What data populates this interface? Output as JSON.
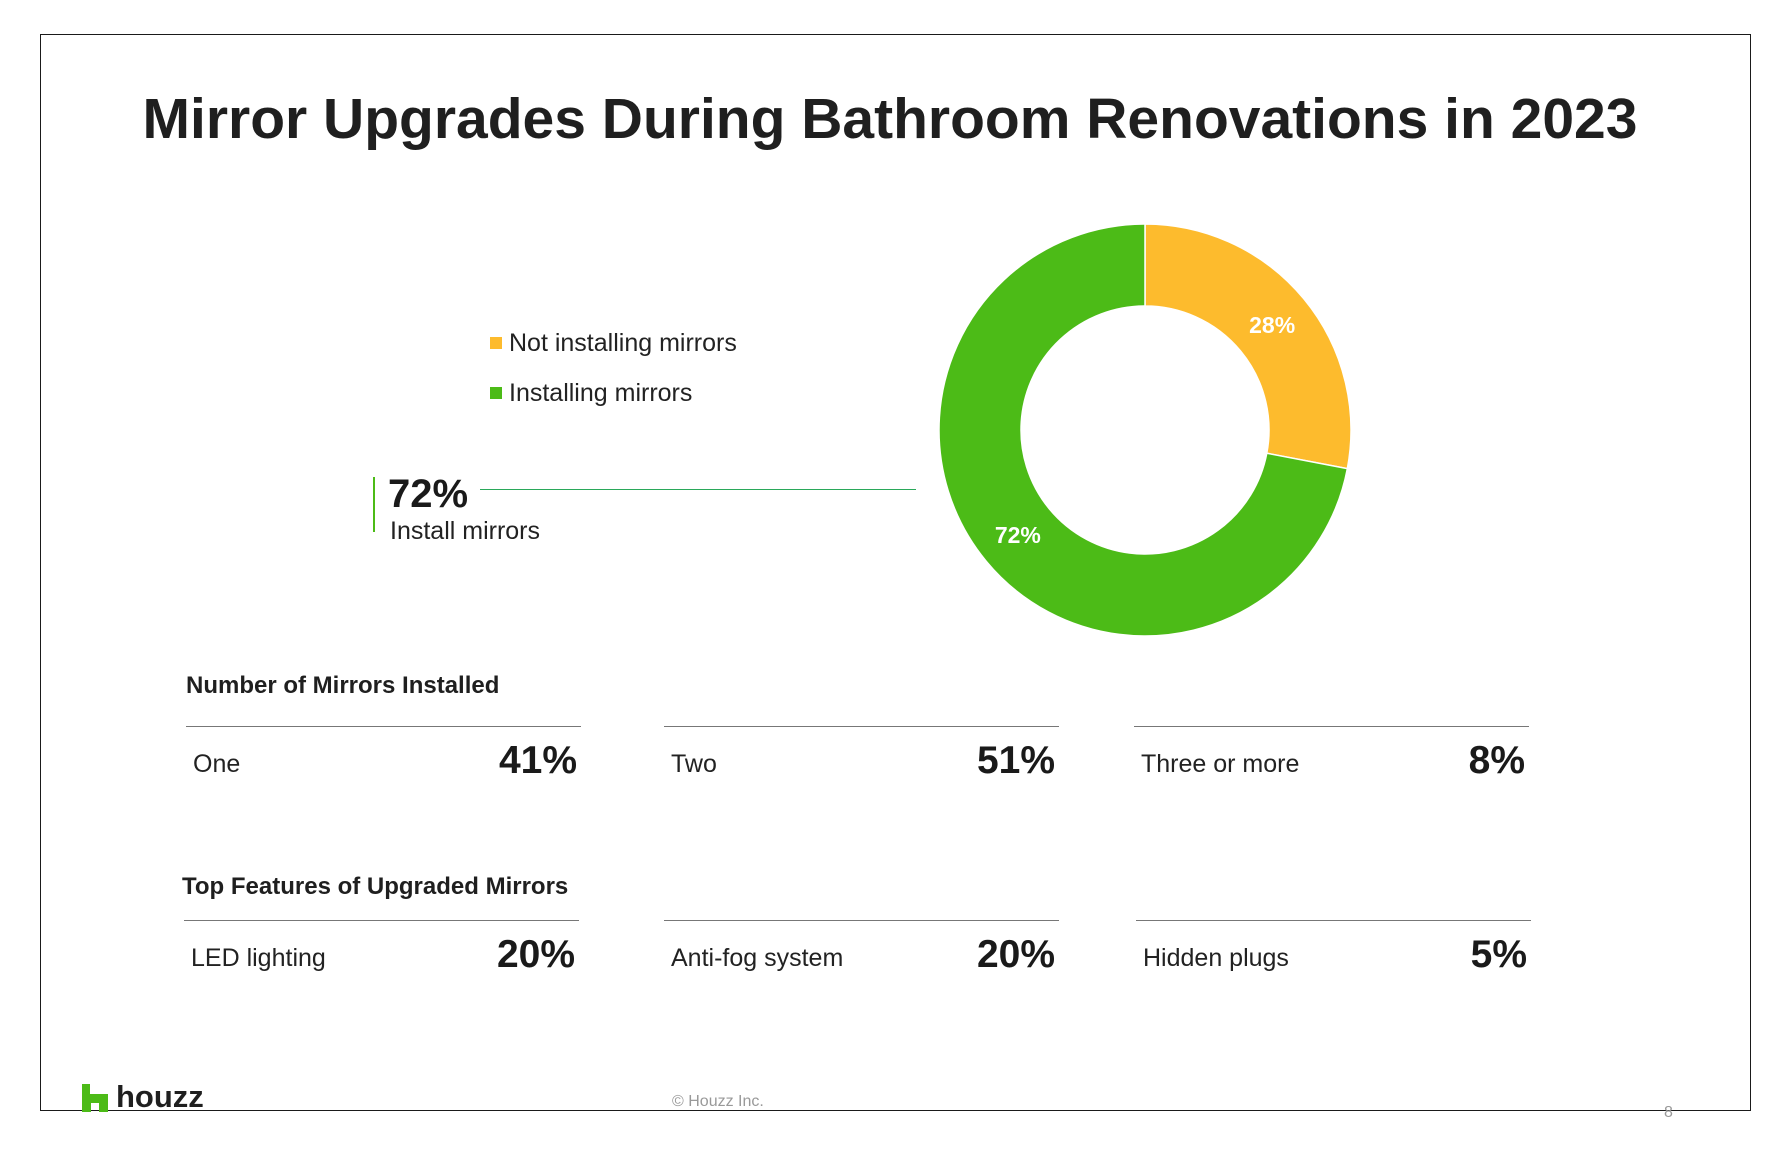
{
  "title": "Mirror Upgrades During Bathroom Renovations in 2023",
  "colors": {
    "not_installing": "#fdbb2d",
    "installing": "#4cbb17"
  },
  "legend": [
    {
      "label": "Not installing mirrors",
      "color": "#fdbb2d"
    },
    {
      "label": "Installing mirrors",
      "color": "#4cbb17"
    }
  ],
  "callout": {
    "value": "72%",
    "label": "Install mirrors"
  },
  "chart_data": {
    "type": "pie",
    "title": "",
    "categories": [
      "Not installing mirrors",
      "Installing mirrors"
    ],
    "values": [
      28,
      72
    ],
    "data_labels": [
      "28%",
      "72%"
    ],
    "colors": [
      "#fdbb2d",
      "#4cbb17"
    ],
    "donut": true,
    "legend_position": "left"
  },
  "mirrors_installed": {
    "heading": "Number of Mirrors Installed",
    "items": [
      {
        "label": "One",
        "value": "41%"
      },
      {
        "label": "Two",
        "value": "51%"
      },
      {
        "label": "Three or more",
        "value": "8%"
      }
    ]
  },
  "top_features": {
    "heading": "Top Features of Upgraded Mirrors",
    "items": [
      {
        "label": "LED lighting",
        "value": "20%"
      },
      {
        "label": "Anti-fog system",
        "value": "20%"
      },
      {
        "label": "Hidden plugs",
        "value": "5%"
      }
    ]
  },
  "footer": {
    "logo_text": "houzz",
    "copyright": "© Houzz Inc.",
    "page_number": "8"
  }
}
